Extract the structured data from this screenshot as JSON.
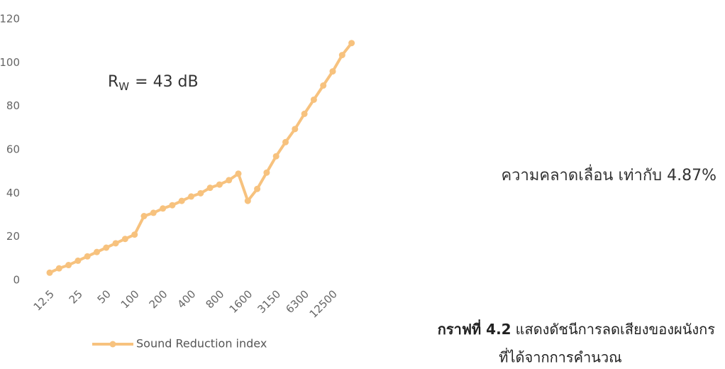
{
  "chart_data": {
    "type": "line",
    "categories": [
      "12.5",
      null,
      null,
      "25",
      null,
      null,
      "50",
      null,
      null,
      "100",
      null,
      null,
      "200",
      null,
      null,
      "400",
      null,
      null,
      "800",
      null,
      null,
      "1600",
      null,
      null,
      "3150",
      null,
      null,
      "6300",
      null,
      null,
      "12500",
      null,
      null
    ],
    "series": [
      {
        "name": "Sound Reduction index",
        "color": "#f7c27e",
        "values": [
          3.5,
          5.5,
          7,
          9,
          11,
          13,
          15,
          17,
          19,
          21,
          29.5,
          31,
          33,
          34.5,
          36.5,
          38.5,
          40,
          42.5,
          44,
          46,
          49,
          36.5,
          42,
          49.5,
          57,
          63.5,
          69.5,
          76.5,
          83,
          89.5,
          96,
          103.5,
          109
        ]
      }
    ],
    "ylim": [
      0,
      120
    ],
    "yticks": [
      0,
      20,
      40,
      60,
      80,
      100,
      120
    ],
    "grid": false,
    "legend": "bottom",
    "annotations": {
      "rw_symbol": "R",
      "rw_subscript": "W",
      "rw_text": "= 43 dB",
      "error": "ความคลาดเลื่อน เท่ากับ 4.87%"
    },
    "caption": {
      "label": "กราฟที่ 4.2",
      "line1": "แสดงดัชนีการลดเสียงของผนังกร",
      "line2": "ที่ได้จากการคำนวณ"
    }
  }
}
